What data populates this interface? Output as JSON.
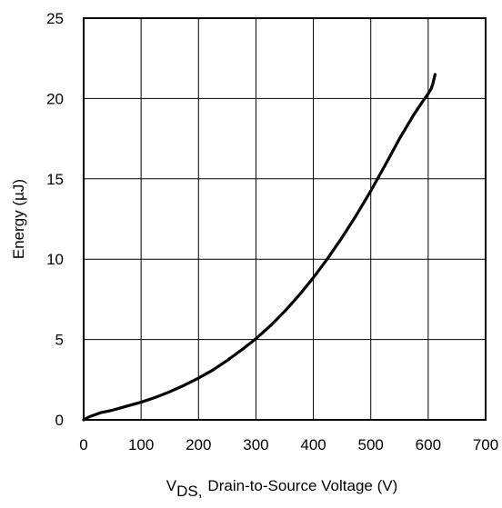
{
  "chart_data": {
    "type": "line",
    "title": "",
    "xlabel": {
      "main": "V",
      "sub": "DS,",
      "rest": "Drain-to-Source Voltage (V)"
    },
    "ylabel": "Energy (µJ)",
    "xlim": [
      0,
      700
    ],
    "ylim": [
      0,
      25
    ],
    "xticks": [
      "0",
      "100",
      "200",
      "300",
      "400",
      "500",
      "600",
      "700"
    ],
    "yticks": [
      "0",
      "5",
      "10",
      "15",
      "20",
      "25"
    ],
    "grid": true,
    "legend": "none",
    "series": [
      {
        "x": [
          0,
          10,
          20,
          30,
          50,
          75,
          100,
          125,
          150,
          175,
          200,
          225,
          250,
          275,
          300,
          325,
          350,
          375,
          400,
          425,
          450,
          475,
          500,
          525,
          550,
          575,
          590,
          600,
          605,
          608,
          610,
          612
        ],
        "y": [
          0,
          0.2,
          0.32,
          0.45,
          0.6,
          0.85,
          1.1,
          1.4,
          1.75,
          2.15,
          2.6,
          3.1,
          3.7,
          4.35,
          5.05,
          5.85,
          6.75,
          7.75,
          8.85,
          10.05,
          11.35,
          12.75,
          14.25,
          15.85,
          17.5,
          19.0,
          19.8,
          20.3,
          20.6,
          20.9,
          21.2,
          21.5
        ],
        "color": "#000000"
      }
    ]
  }
}
